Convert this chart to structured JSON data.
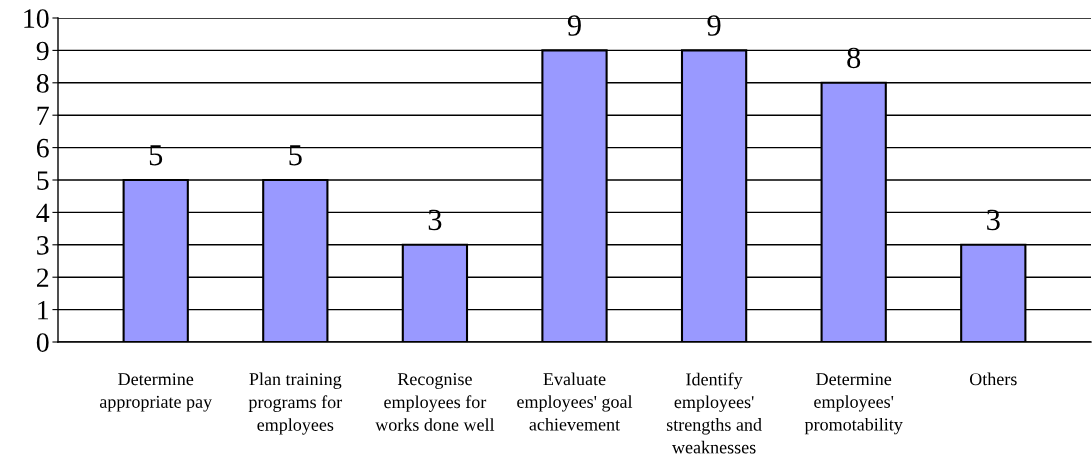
{
  "chart_data": {
    "type": "bar",
    "categories": [
      "Determine\nappropriate pay",
      "Plan training\nprograms for\nemployees",
      "Recognise\nemployees for\nworks done well",
      "Evaluate\nemployees' goal\nachievement",
      "Identify\nemployees'\nstrengths and\nweaknesses",
      "Determine\nemployees'\npromotability",
      "Others"
    ],
    "values": [
      5,
      5,
      3,
      9,
      9,
      8,
      3
    ],
    "color": "#9999ff",
    "ylim": [
      0,
      10
    ],
    "yticks": [
      0,
      1,
      2,
      3,
      4,
      5,
      6,
      7,
      8,
      9,
      10
    ],
    "grid": "y",
    "data_labels": true,
    "legend": false
  }
}
